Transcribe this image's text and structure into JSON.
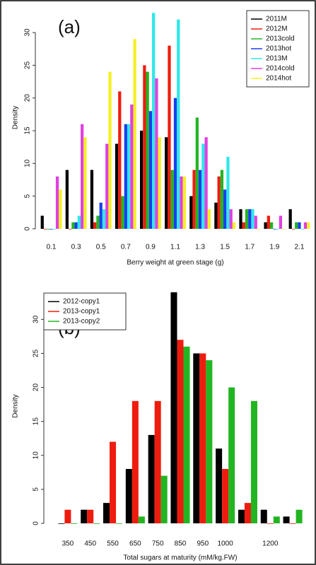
{
  "chart_data": [
    {
      "type": "bar",
      "annotation": "(a)",
      "xlabel": "Berry weight at green stage (g)",
      "ylabel": "Density",
      "categories": [
        "0.1",
        "0.3",
        "0.5",
        "0.7",
        "0.9",
        "1.1",
        "1.3",
        "1.5",
        "1.7",
        "1.9",
        "2.1"
      ],
      "series": [
        {
          "name": "2011M",
          "color": "#000000",
          "values": [
            2,
            9,
            9,
            13,
            15,
            14,
            5,
            4,
            3,
            1,
            3
          ]
        },
        {
          "name": "2012M",
          "color": "#ee1c0e",
          "values": [
            0,
            0,
            1,
            21,
            25,
            28,
            9,
            8,
            1,
            2,
            0
          ]
        },
        {
          "name": "2013cold",
          "color": "#22b522",
          "values": [
            0,
            1,
            2,
            5,
            24,
            9,
            17,
            9,
            3,
            1,
            1
          ]
        },
        {
          "name": "2013hot",
          "color": "#1a3ef0",
          "values": [
            0,
            1,
            4,
            16,
            18,
            20,
            9,
            6,
            3,
            0,
            1
          ]
        },
        {
          "name": "2013M",
          "color": "#2ee8e8",
          "values": [
            0,
            2,
            3,
            16,
            33,
            32,
            13,
            11,
            3,
            0,
            0
          ]
        },
        {
          "name": "2014cold",
          "color": "#e040e0",
          "values": [
            8,
            16,
            13,
            19,
            23,
            8,
            14,
            3,
            2,
            2,
            1
          ]
        },
        {
          "name": "2014hot",
          "color": "#f5f020",
          "values": [
            6,
            14,
            24,
            29,
            14,
            8,
            3,
            1,
            0,
            0,
            1
          ]
        }
      ],
      "ylim": [
        0,
        34
      ],
      "yticks": [
        0,
        5,
        10,
        15,
        20,
        25,
        30
      ],
      "legend": "top-right"
    },
    {
      "type": "bar",
      "annotation": "(b)",
      "xlabel": "Total sugars at maturity (mM/kg.FW)",
      "ylabel": "Density",
      "categories": [
        "350",
        "450",
        "550",
        "650",
        "750",
        "850",
        "950",
        "1000",
        null,
        "1200",
        null
      ],
      "series": [
        {
          "name": "2012-copy1",
          "color": "#000000",
          "values": [
            0,
            2,
            3,
            8,
            13,
            34,
            25,
            11,
            2,
            2,
            1
          ]
        },
        {
          "name": "2013-copy1",
          "color": "#ee1c0e",
          "values": [
            2,
            2,
            12,
            18,
            18,
            27,
            25,
            8,
            3,
            0,
            0
          ]
        },
        {
          "name": "2013-copy2",
          "color": "#22b522",
          "values": [
            0,
            0,
            0,
            1,
            7,
            26,
            24,
            20,
            18,
            1,
            2
          ]
        }
      ],
      "ylim": [
        0,
        34.5
      ],
      "yticks": [
        0,
        5,
        10,
        15,
        20,
        25,
        30
      ],
      "legend": "top-left"
    }
  ]
}
